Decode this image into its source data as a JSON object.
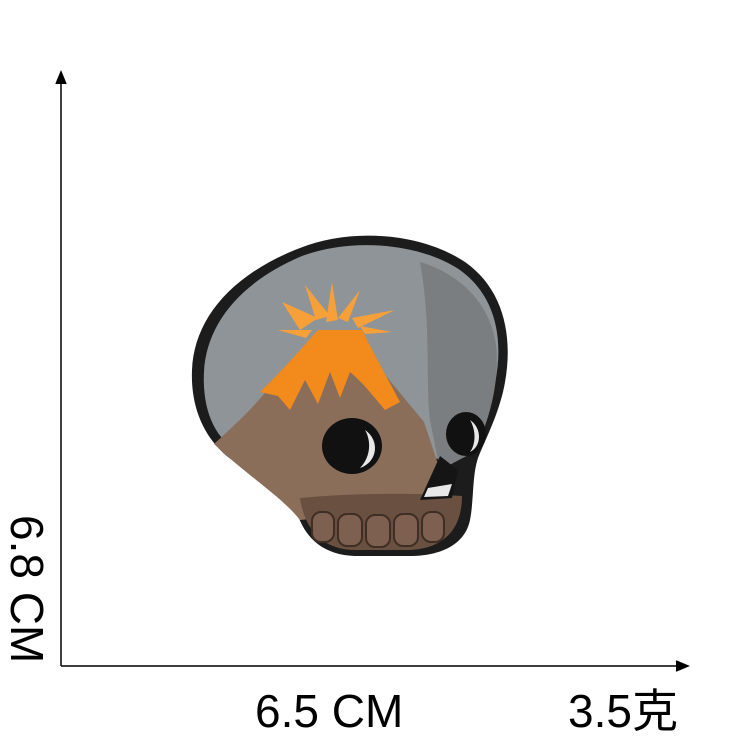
{
  "dimensions": {
    "height": "6.8 CM",
    "width": "6.5 CM",
    "weight": "3.5克"
  },
  "colors": {
    "axis": "#000000",
    "border": "#1c1c1c",
    "sky": "#8e9498",
    "skull_grey": "#7a7e80",
    "lava": "#f28a1c",
    "mountain": "#8a6e5a",
    "teeth": "#6a5040"
  }
}
